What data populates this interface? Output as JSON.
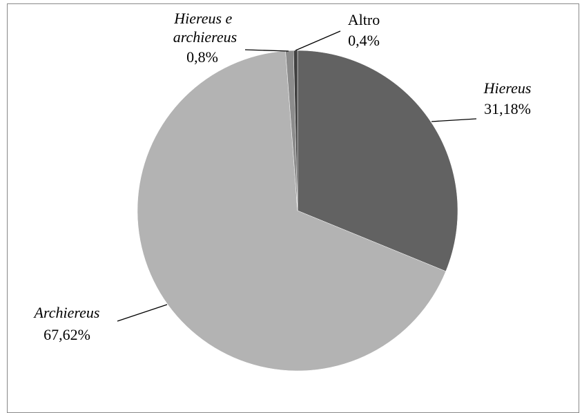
{
  "chart_data": {
    "type": "pie",
    "categories": [
      "Hiereus",
      "Archiereus",
      "Hiereus e archiereus",
      "Altro"
    ],
    "values": [
      31.18,
      67.62,
      0.8,
      0.4
    ],
    "value_labels": [
      "31,18%",
      "67,62%",
      "0,8%",
      "0,4%"
    ],
    "colors": [
      "#626262",
      "#b3b3b3",
      "#8c8c8c",
      "#404040"
    ]
  }
}
